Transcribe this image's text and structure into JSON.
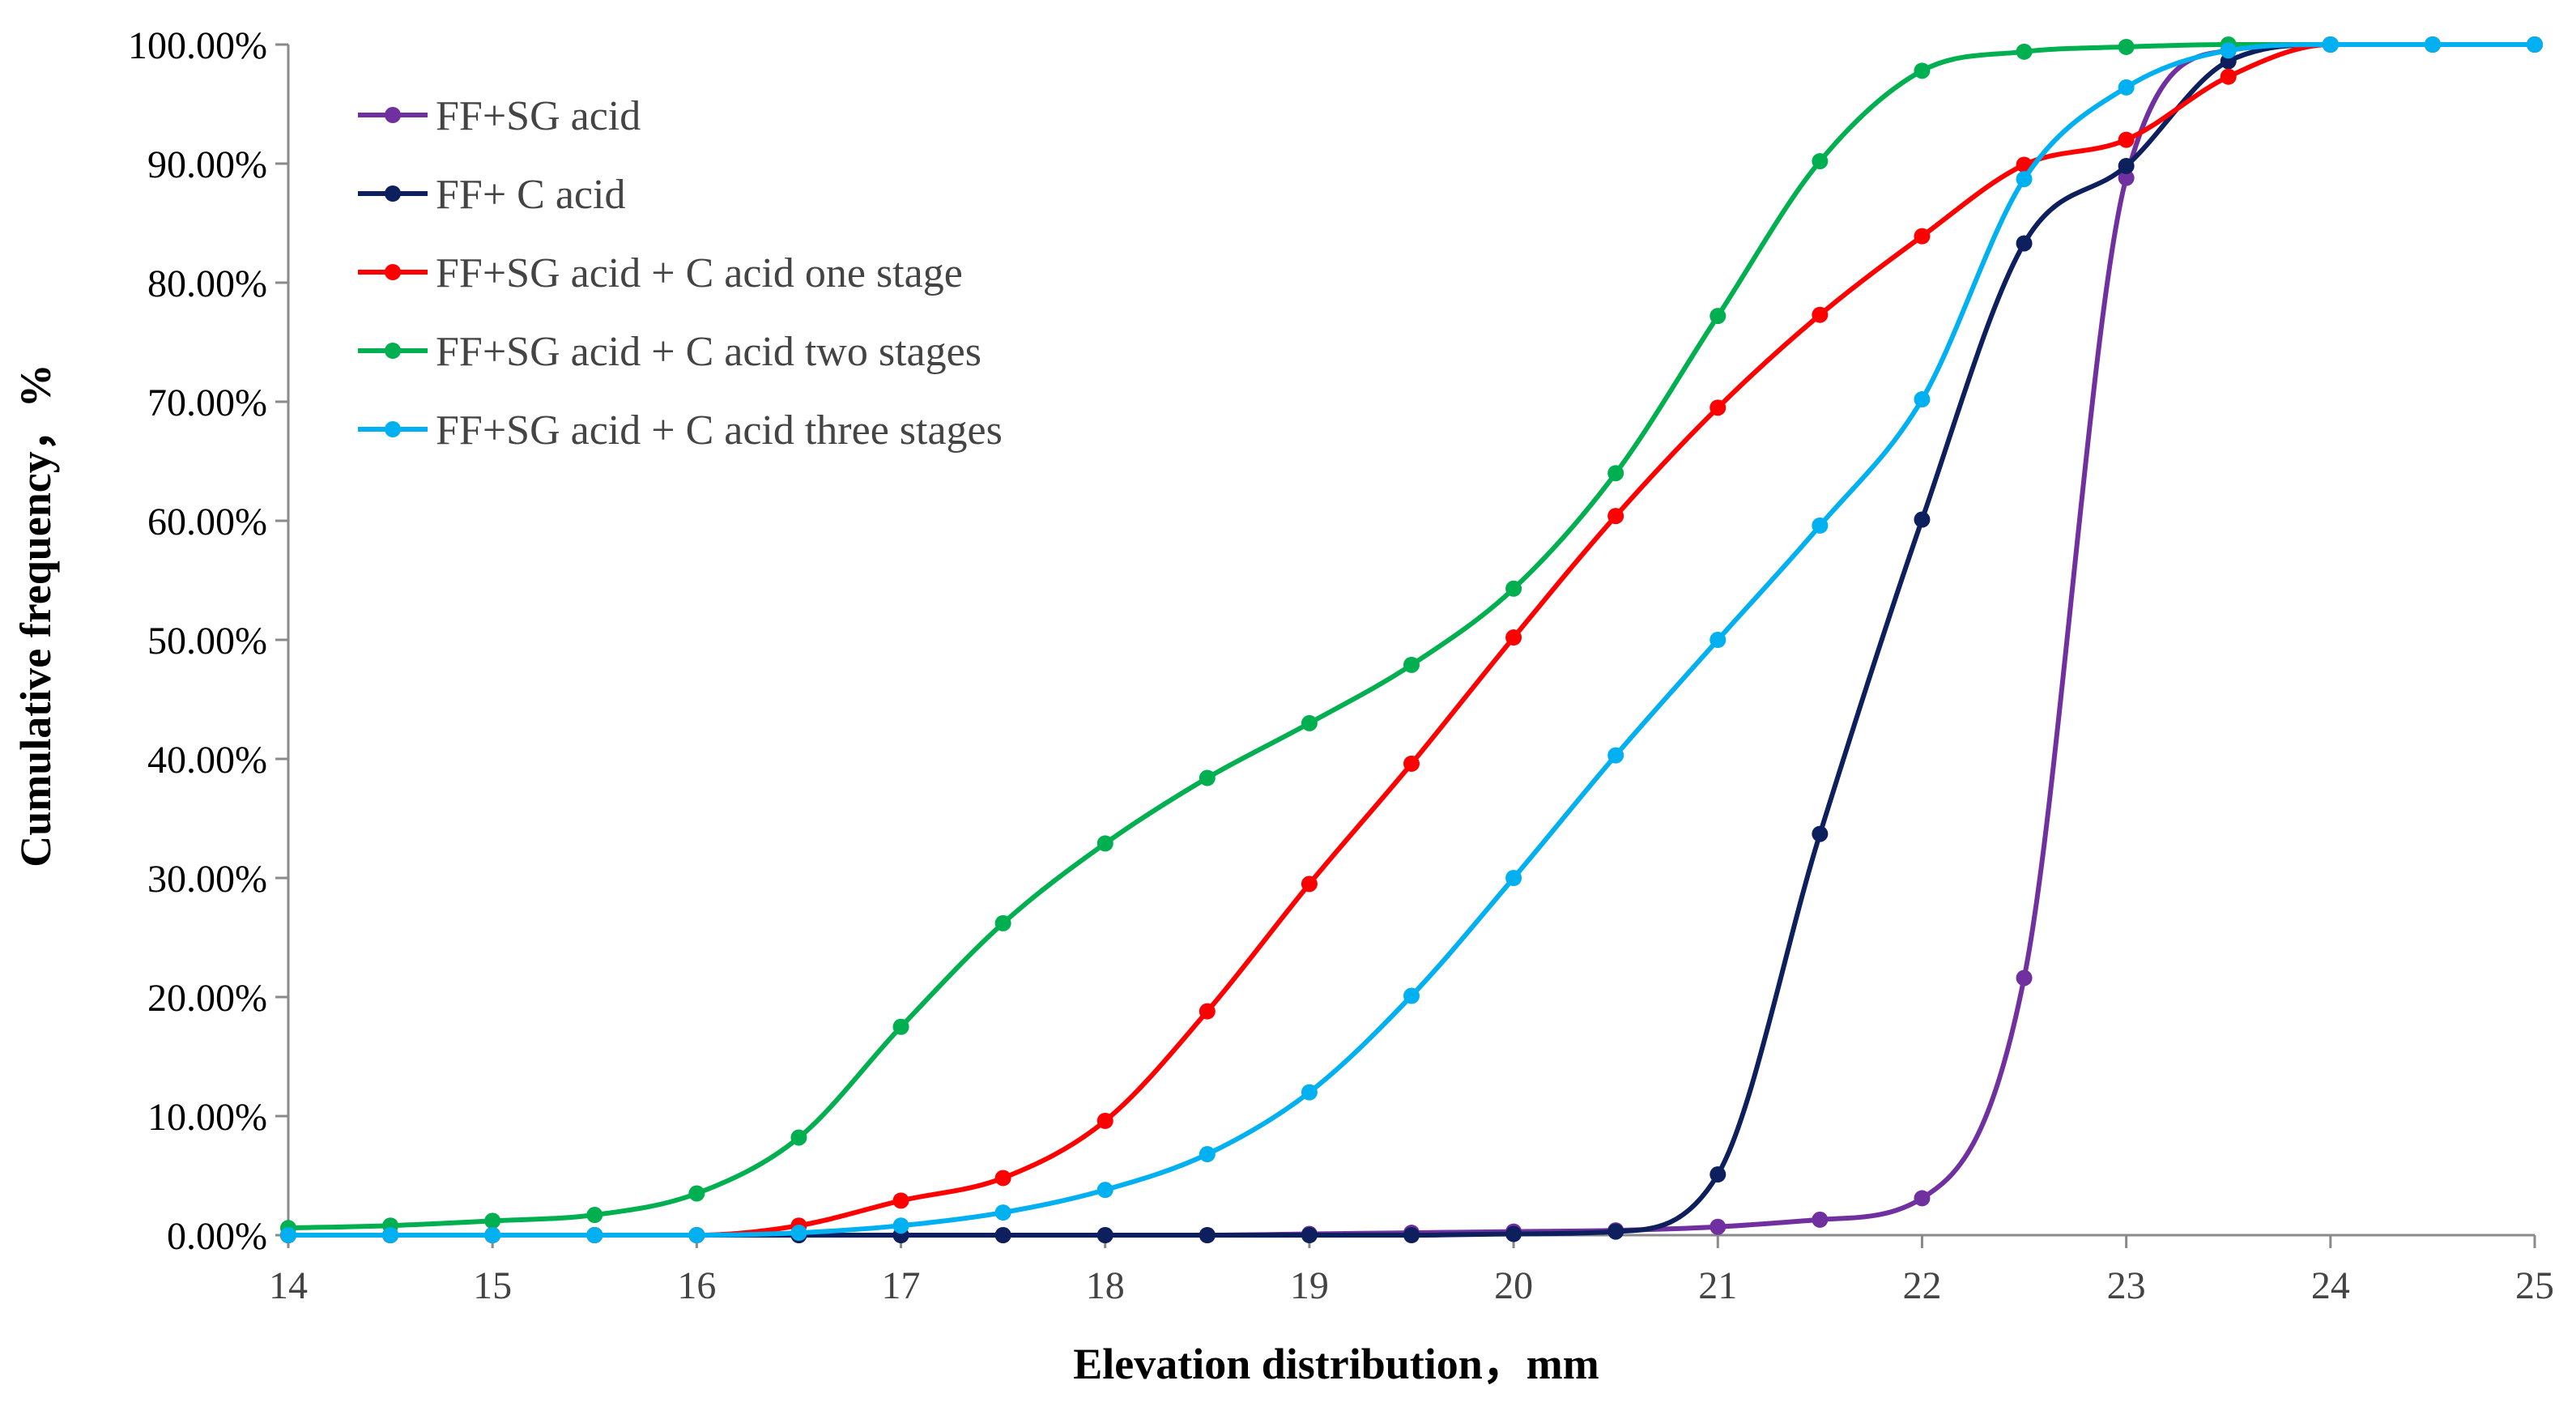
{
  "chart_data": {
    "type": "line",
    "title": "",
    "xlabel": "Elevation distribution，mm",
    "ylabel": "Cumulative frequency，%",
    "xlim": [
      14,
      25
    ],
    "ylim": [
      0,
      100
    ],
    "x_ticks": [
      "14",
      "15",
      "16",
      "17",
      "18",
      "19",
      "20",
      "21",
      "22",
      "23",
      "24",
      "25"
    ],
    "y_ticks": [
      "0.00%",
      "10.00%",
      "20.00%",
      "30.00%",
      "40.00%",
      "50.00%",
      "60.00%",
      "70.00%",
      "80.00%",
      "90.00%",
      "100.00%"
    ],
    "grid": false,
    "legend_position": "top-left",
    "x": [
      14,
      14.5,
      15,
      15.5,
      16,
      16.5,
      17,
      17.5,
      18,
      18.5,
      19,
      19.5,
      20,
      20.5,
      21,
      21.5,
      22,
      22.5,
      23,
      23.5,
      24,
      24.5,
      25
    ],
    "series": [
      {
        "name": "FF+SG acid",
        "color": "#7030a0",
        "values": [
          0,
          0,
          0,
          0,
          0,
          0,
          0,
          0,
          0,
          0,
          0.1,
          0.2,
          0.3,
          0.4,
          0.7,
          1.3,
          3.1,
          21.6,
          88.8,
          99.5,
          100,
          100,
          100
        ]
      },
      {
        "name": "FF+ C acid",
        "color": "#0d1f5c",
        "values": [
          0,
          0,
          0,
          0,
          0,
          0,
          0,
          0,
          0,
          0,
          0,
          0,
          0.1,
          0.3,
          5.1,
          33.7,
          60.1,
          83.3,
          89.8,
          98.6,
          100,
          100,
          100
        ]
      },
      {
        "name": "FF+SG acid + C acid one stage",
        "color": "#ff0000",
        "values": [
          0,
          0,
          0,
          0,
          0,
          0.8,
          2.9,
          4.8,
          9.6,
          18.8,
          29.5,
          39.6,
          50.2,
          60.4,
          69.5,
          77.3,
          83.9,
          89.9,
          92.0,
          97.3,
          100,
          100,
          100
        ]
      },
      {
        "name": "FF+SG acid + C acid two stages",
        "color": "#00b050",
        "values": [
          0.6,
          0.8,
          1.2,
          1.7,
          3.5,
          8.2,
          17.5,
          26.2,
          32.9,
          38.4,
          43.0,
          47.9,
          54.3,
          64.0,
          77.2,
          90.2,
          97.8,
          99.4,
          99.8,
          100,
          100,
          100,
          100
        ]
      },
      {
        "name": "FF+SG acid + C acid three stages",
        "color": "#00b0f0",
        "values": [
          0,
          0,
          0,
          0,
          0,
          0.2,
          0.8,
          1.9,
          3.8,
          6.8,
          12.0,
          20.1,
          30.0,
          40.3,
          50.0,
          59.6,
          70.2,
          88.7,
          96.4,
          99.5,
          100,
          100,
          100
        ]
      }
    ]
  }
}
